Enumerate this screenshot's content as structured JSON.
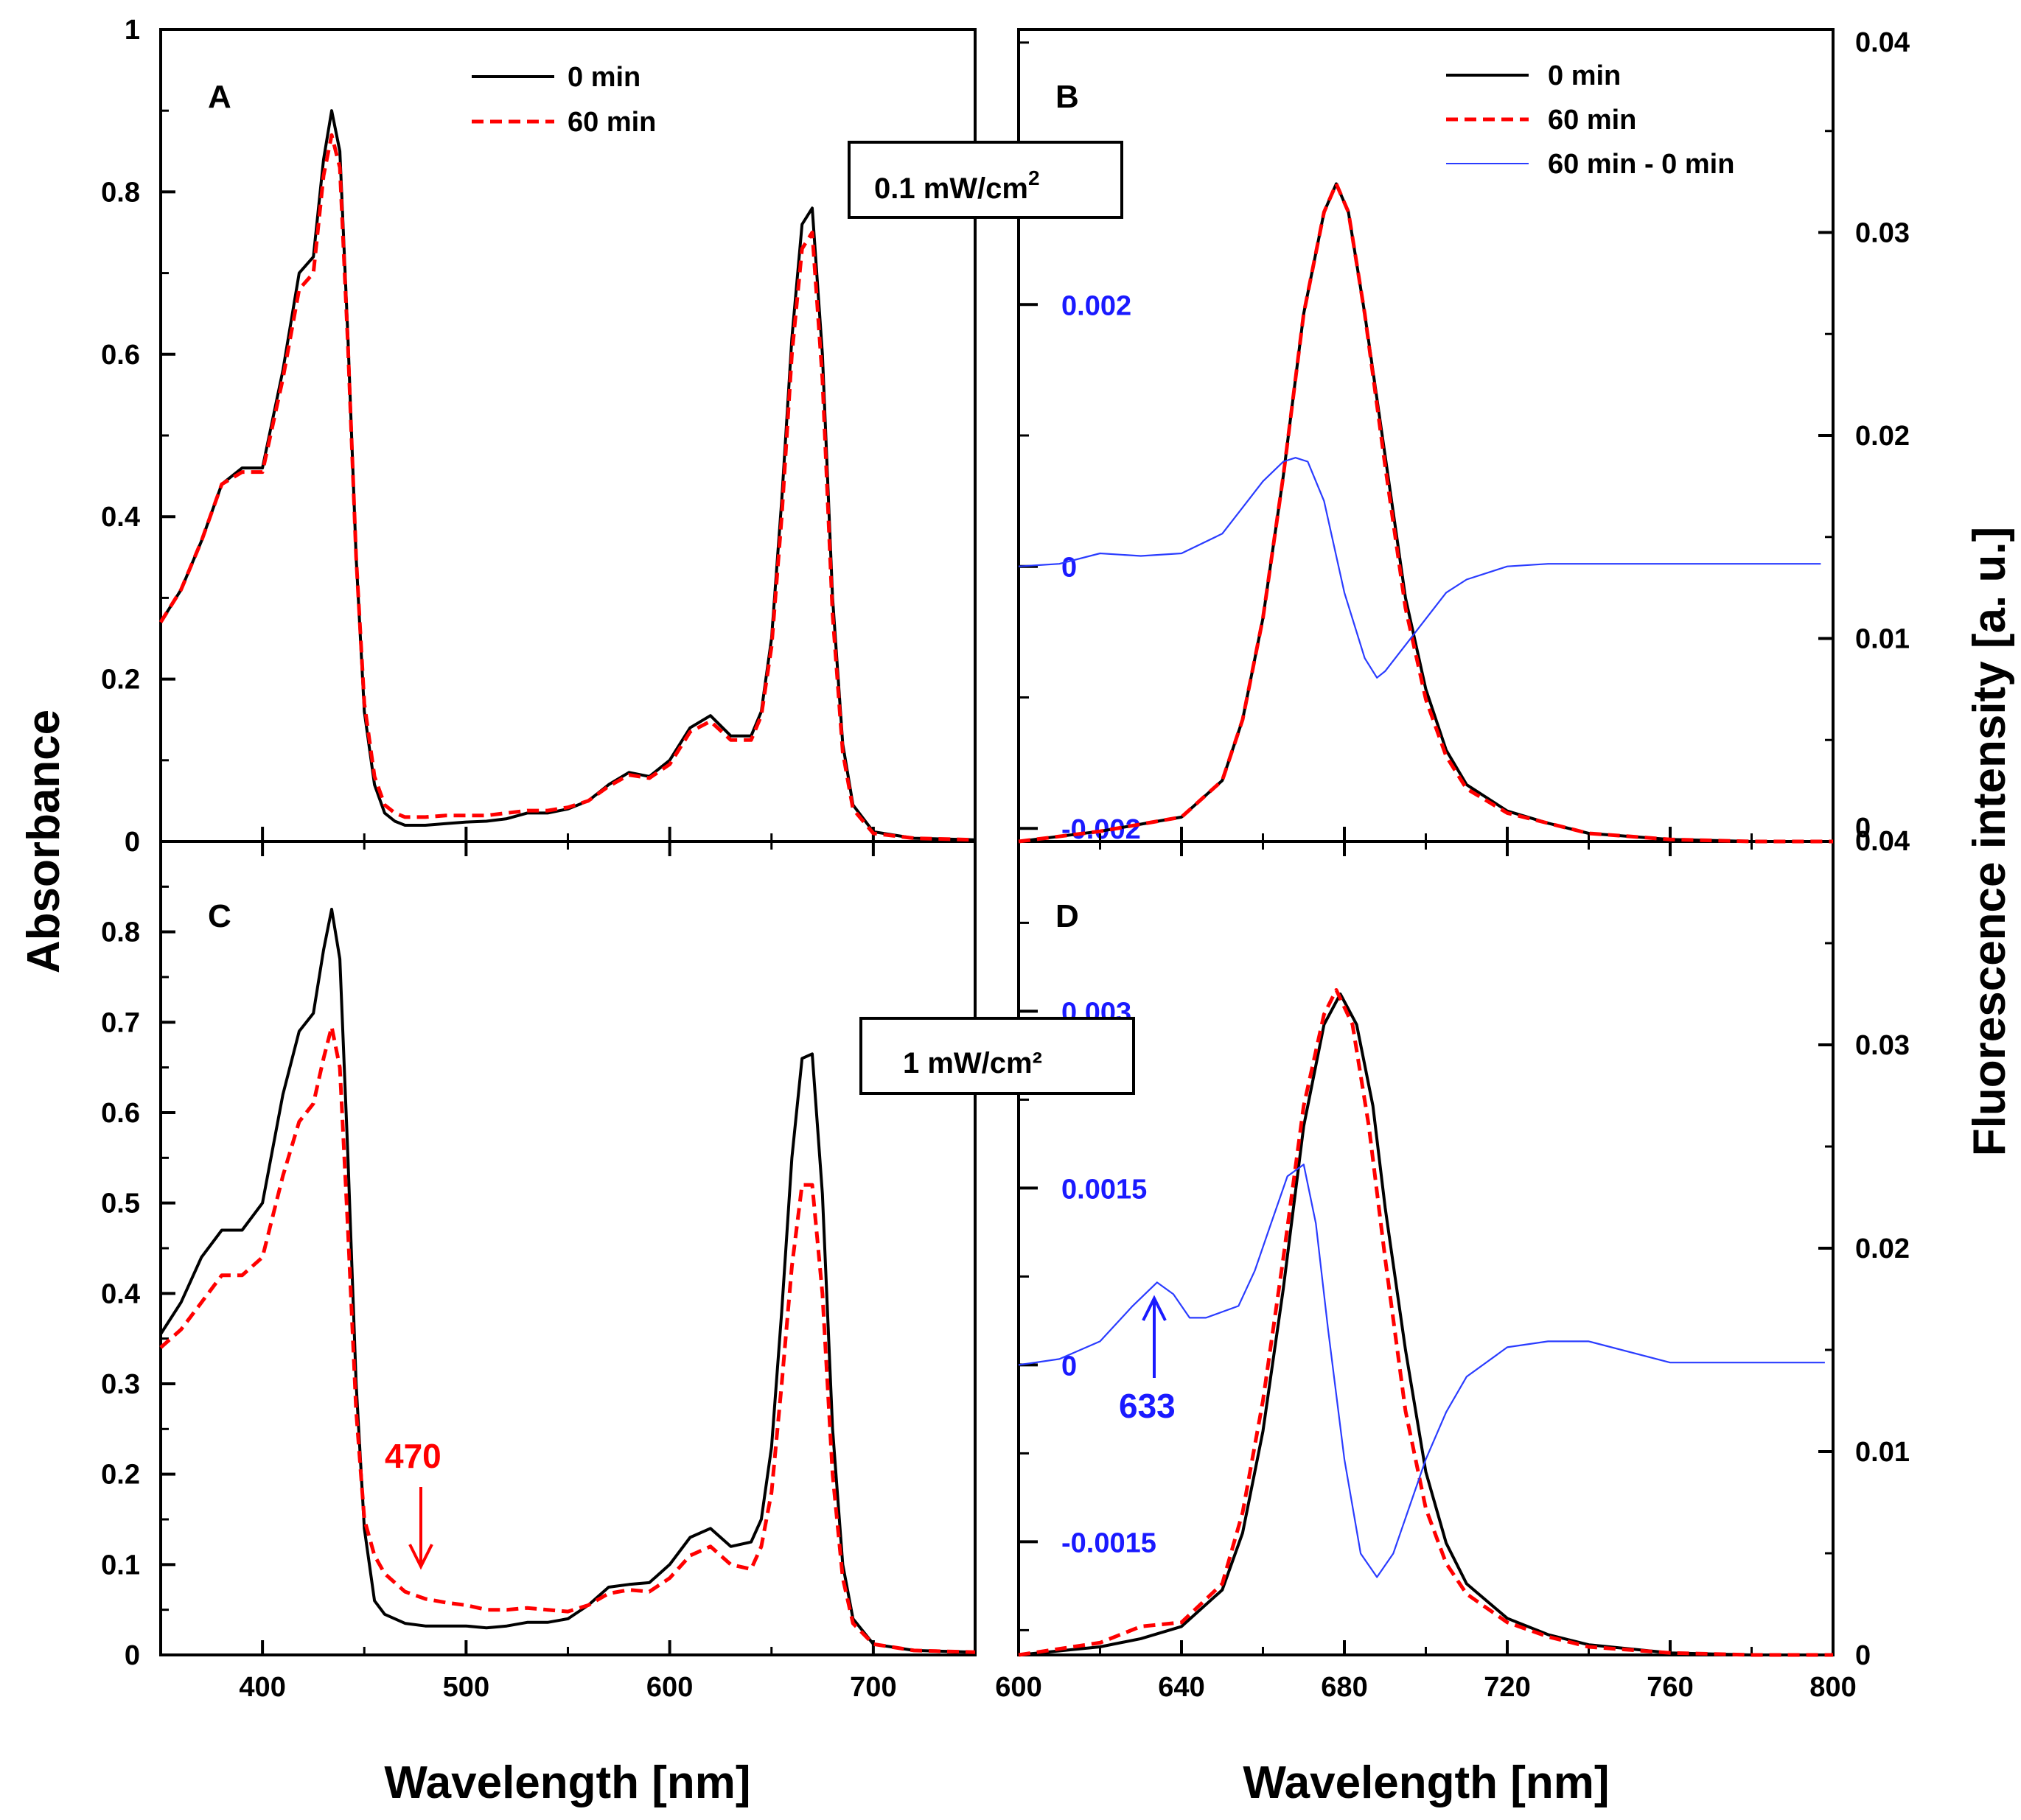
{
  "figure": {
    "left_ylabel": "Absorbance",
    "right_ylabel": "Fluorescence intensity [a. u.]",
    "xlabel": "Wavelength [nm]"
  },
  "chart_data": [
    {
      "panel": "A",
      "type": "line",
      "xlabel": "Wavelength [nm]",
      "ylabel": "Absorbance",
      "xlim": [
        350,
        750
      ],
      "ylim": [
        0,
        1
      ],
      "yticks": [
        "0",
        "0.2",
        "0.4",
        "0.6",
        "0.8",
        "1"
      ],
      "xticks": [],
      "legend_position": "top-center",
      "series": [
        {
          "name": "0 min",
          "color": "#000000",
          "style": "solid",
          "x": [
            350,
            360,
            370,
            380,
            390,
            400,
            410,
            418,
            425,
            430,
            434,
            438,
            442,
            446,
            450,
            455,
            460,
            465,
            470,
            480,
            490,
            500,
            510,
            520,
            530,
            540,
            550,
            560,
            570,
            580,
            590,
            600,
            610,
            620,
            630,
            640,
            645,
            650,
            655,
            660,
            665,
            670,
            675,
            680,
            685,
            690,
            700,
            720,
            750
          ],
          "y": [
            0.27,
            0.31,
            0.37,
            0.44,
            0.46,
            0.46,
            0.58,
            0.7,
            0.72,
            0.84,
            0.9,
            0.85,
            0.62,
            0.35,
            0.16,
            0.07,
            0.035,
            0.025,
            0.02,
            0.02,
            0.022,
            0.024,
            0.025,
            0.028,
            0.035,
            0.035,
            0.04,
            0.05,
            0.07,
            0.085,
            0.08,
            0.1,
            0.14,
            0.155,
            0.13,
            0.13,
            0.16,
            0.25,
            0.42,
            0.62,
            0.76,
            0.78,
            0.6,
            0.3,
            0.12,
            0.045,
            0.012,
            0.004,
            0.002
          ]
        },
        {
          "name": "60 min",
          "color": "#ff0000",
          "style": "dashed",
          "x": [
            350,
            360,
            370,
            380,
            390,
            400,
            410,
            418,
            425,
            430,
            434,
            438,
            442,
            446,
            450,
            455,
            460,
            465,
            470,
            480,
            490,
            500,
            510,
            520,
            530,
            540,
            550,
            560,
            570,
            580,
            590,
            600,
            610,
            620,
            630,
            640,
            645,
            650,
            655,
            660,
            665,
            670,
            675,
            680,
            685,
            690,
            700,
            720,
            750
          ],
          "y": [
            0.27,
            0.31,
            0.37,
            0.44,
            0.455,
            0.455,
            0.57,
            0.68,
            0.7,
            0.82,
            0.87,
            0.83,
            0.61,
            0.35,
            0.17,
            0.08,
            0.045,
            0.035,
            0.03,
            0.03,
            0.032,
            0.032,
            0.032,
            0.035,
            0.038,
            0.038,
            0.042,
            0.05,
            0.068,
            0.082,
            0.078,
            0.095,
            0.135,
            0.148,
            0.125,
            0.125,
            0.155,
            0.24,
            0.4,
            0.6,
            0.73,
            0.75,
            0.57,
            0.28,
            0.11,
            0.04,
            0.01,
            0.004,
            0.002
          ]
        }
      ]
    },
    {
      "panel": "B",
      "type": "line",
      "xlabel": "Wavelength [nm]",
      "ylabel": "Fluorescence intensity [a. u.]",
      "xlim": [
        600,
        800
      ],
      "ylim_right": [
        0,
        0.04
      ],
      "ylim_left_blue": [
        -0.0021,
        0.0041
      ],
      "right_yticks": [
        "0",
        "0.01",
        "0.02",
        "0.03",
        "0.04"
      ],
      "left_yticks_blue": [
        "-0.002",
        "0",
        "0.002"
      ],
      "legend_position": "top-right",
      "series": [
        {
          "name": "0 min",
          "color": "#000000",
          "style": "solid",
          "axis": "right",
          "x": [
            600,
            620,
            640,
            650,
            655,
            660,
            665,
            670,
            675,
            678,
            681,
            685,
            690,
            695,
            700,
            705,
            710,
            720,
            730,
            740,
            760,
            780,
            800
          ],
          "y": [
            0.0,
            0.0005,
            0.0012,
            0.003,
            0.006,
            0.011,
            0.018,
            0.026,
            0.031,
            0.0324,
            0.031,
            0.026,
            0.019,
            0.012,
            0.0075,
            0.0045,
            0.0028,
            0.0015,
            0.0009,
            0.0004,
            0.0001,
            0.0,
            0.0
          ]
        },
        {
          "name": "60 min",
          "color": "#ff0000",
          "style": "dashed",
          "axis": "right",
          "x": [
            600,
            620,
            640,
            650,
            655,
            660,
            665,
            670,
            675,
            678,
            681,
            685,
            690,
            695,
            700,
            705,
            710,
            720,
            730,
            740,
            760,
            780,
            800
          ],
          "y": [
            0.0,
            0.0005,
            0.0012,
            0.003,
            0.006,
            0.011,
            0.018,
            0.026,
            0.031,
            0.0324,
            0.031,
            0.026,
            0.0185,
            0.0115,
            0.007,
            0.0042,
            0.0026,
            0.0014,
            0.0009,
            0.0004,
            0.0001,
            0.0,
            0.0
          ]
        },
        {
          "name": "60 min - 0 min",
          "color": "#2a3cff",
          "style": "solid",
          "axis": "left",
          "x": [
            600,
            610,
            620,
            630,
            640,
            650,
            655,
            660,
            665,
            668,
            671,
            675,
            680,
            685,
            688,
            690,
            695,
            700,
            705,
            710,
            720,
            730,
            750,
            775,
            797
          ],
          "y": [
            0.0,
            2e-05,
            0.0001,
            8e-05,
            0.0001,
            0.00025,
            0.00045,
            0.00065,
            0.0008,
            0.00083,
            0.0008,
            0.0005,
            -0.0002,
            -0.0007,
            -0.00085,
            -0.0008,
            -0.0006,
            -0.0004,
            -0.0002,
            -0.0001,
            0.0,
            2e-05,
            2e-05,
            2e-05,
            2e-05
          ]
        }
      ]
    },
    {
      "panel": "C",
      "type": "line",
      "xlabel": "Wavelength [nm]",
      "ylabel": "Absorbance",
      "xlim": [
        350,
        750
      ],
      "ylim": [
        0,
        0.9
      ],
      "yticks": [
        "0",
        "0.1",
        "0.2",
        "0.3",
        "0.4",
        "0.5",
        "0.6",
        "0.7",
        "0.8"
      ],
      "xticks": [
        "400",
        "500",
        "600",
        "700"
      ],
      "series": [
        {
          "name": "0 min",
          "color": "#000000",
          "style": "solid",
          "x": [
            350,
            360,
            370,
            380,
            390,
            400,
            410,
            418,
            425,
            430,
            434,
            438,
            442,
            446,
            450,
            455,
            460,
            465,
            470,
            480,
            490,
            500,
            510,
            520,
            530,
            540,
            550,
            560,
            570,
            580,
            590,
            600,
            610,
            620,
            630,
            640,
            645,
            650,
            655,
            660,
            665,
            670,
            675,
            680,
            685,
            690,
            700,
            720,
            750
          ],
          "y": [
            0.355,
            0.39,
            0.44,
            0.47,
            0.47,
            0.5,
            0.62,
            0.69,
            0.71,
            0.78,
            0.825,
            0.77,
            0.55,
            0.3,
            0.14,
            0.06,
            0.045,
            0.04,
            0.035,
            0.032,
            0.032,
            0.032,
            0.03,
            0.032,
            0.036,
            0.036,
            0.04,
            0.055,
            0.075,
            0.078,
            0.08,
            0.1,
            0.13,
            0.14,
            0.12,
            0.125,
            0.15,
            0.23,
            0.38,
            0.55,
            0.66,
            0.665,
            0.51,
            0.25,
            0.1,
            0.04,
            0.012,
            0.005,
            0.003
          ]
        },
        {
          "name": "60 min",
          "color": "#ff0000",
          "style": "dashed",
          "x": [
            350,
            360,
            370,
            380,
            390,
            400,
            410,
            418,
            425,
            430,
            434,
            438,
            442,
            446,
            450,
            455,
            460,
            465,
            470,
            480,
            490,
            500,
            510,
            520,
            530,
            540,
            550,
            560,
            570,
            580,
            590,
            600,
            610,
            620,
            630,
            640,
            645,
            650,
            655,
            660,
            665,
            670,
            675,
            680,
            685,
            690,
            700,
            720,
            750
          ],
          "y": [
            0.34,
            0.36,
            0.39,
            0.42,
            0.42,
            0.44,
            0.53,
            0.59,
            0.61,
            0.66,
            0.695,
            0.65,
            0.47,
            0.27,
            0.15,
            0.11,
            0.09,
            0.08,
            0.07,
            0.062,
            0.058,
            0.055,
            0.05,
            0.05,
            0.052,
            0.05,
            0.048,
            0.055,
            0.068,
            0.072,
            0.07,
            0.085,
            0.11,
            0.12,
            0.1,
            0.095,
            0.12,
            0.18,
            0.3,
            0.43,
            0.52,
            0.52,
            0.4,
            0.2,
            0.085,
            0.035,
            0.012,
            0.005,
            0.003
          ]
        }
      ],
      "annotation": {
        "text": "470",
        "x": 470,
        "color": "#ff0000"
      }
    },
    {
      "panel": "D",
      "type": "line",
      "xlabel": "Wavelength [nm]",
      "ylabel": "Fluorescence intensity [a. u.]",
      "xlim": [
        600,
        800
      ],
      "xticks": [
        "600",
        "640",
        "680",
        "720",
        "760",
        "800"
      ],
      "ylim_right": [
        0,
        0.04
      ],
      "ylim_left_blue": [
        -0.00246,
        0.00444
      ],
      "right_yticks": [
        "0",
        "0.01",
        "0.02",
        "0.03",
        "0.04"
      ],
      "left_yticks_blue": [
        "-0.0015",
        "0",
        "0.0015",
        "0.003"
      ],
      "series": [
        {
          "name": "0 min",
          "color": "#000000",
          "style": "solid",
          "axis": "right",
          "x": [
            600,
            620,
            630,
            640,
            650,
            655,
            660,
            665,
            670,
            675,
            679,
            683,
            687,
            690,
            695,
            700,
            705,
            710,
            720,
            730,
            740,
            760,
            780,
            800
          ],
          "y": [
            0.0,
            0.0004,
            0.0008,
            0.0014,
            0.0032,
            0.006,
            0.011,
            0.018,
            0.026,
            0.031,
            0.0325,
            0.031,
            0.027,
            0.022,
            0.015,
            0.009,
            0.0055,
            0.0035,
            0.0018,
            0.001,
            0.0005,
            0.0001,
            0.0,
            0.0
          ]
        },
        {
          "name": "60 min",
          "color": "#ff0000",
          "style": "dashed",
          "axis": "right",
          "x": [
            600,
            620,
            630,
            640,
            650,
            655,
            660,
            665,
            670,
            675,
            678,
            682,
            686,
            690,
            695,
            700,
            705,
            710,
            720,
            730,
            740,
            760,
            780,
            800
          ],
          "y": [
            0.0,
            0.0006,
            0.0014,
            0.0016,
            0.0035,
            0.007,
            0.0125,
            0.0195,
            0.027,
            0.0315,
            0.0327,
            0.031,
            0.026,
            0.0195,
            0.012,
            0.0072,
            0.0045,
            0.003,
            0.0016,
            0.0009,
            0.0004,
            0.0001,
            0.0,
            0.0
          ]
        },
        {
          "name": "60 min - 0 min",
          "color": "#2a3cff",
          "style": "solid",
          "axis": "left",
          "x": [
            600,
            610,
            620,
            628,
            634,
            638,
            642,
            646,
            650,
            654,
            658,
            662,
            666,
            670,
            673,
            676,
            680,
            684,
            688,
            692,
            696,
            700,
            705,
            710,
            720,
            730,
            740,
            760,
            780,
            798
          ],
          "y": [
            0.0,
            5e-05,
            0.0002,
            0.0005,
            0.0007,
            0.0006,
            0.0004,
            0.0004,
            0.00045,
            0.0005,
            0.0008,
            0.0012,
            0.0016,
            0.0017,
            0.0012,
            0.0003,
            -0.0008,
            -0.0016,
            -0.0018,
            -0.0016,
            -0.0012,
            -0.0008,
            -0.0004,
            -0.0001,
            0.00015,
            0.0002,
            0.0002,
            2e-05,
            2e-05,
            2e-05
          ]
        }
      ],
      "annotation": {
        "text": "633",
        "x": 633,
        "color": "#1a1aff"
      }
    }
  ],
  "legend": {
    "items": [
      {
        "label": "0 min",
        "color": "#000000",
        "style": "solid"
      },
      {
        "label": "60 min",
        "color": "#ff0000",
        "style": "dashed"
      },
      {
        "label": "60 min - 0 min",
        "color": "#2a3cff",
        "style": "solid"
      }
    ]
  },
  "boxes": {
    "top": {
      "text": "0.1 mW/cm",
      "sup": "2"
    },
    "bottom": {
      "text": "1 mW/cm²"
    }
  }
}
